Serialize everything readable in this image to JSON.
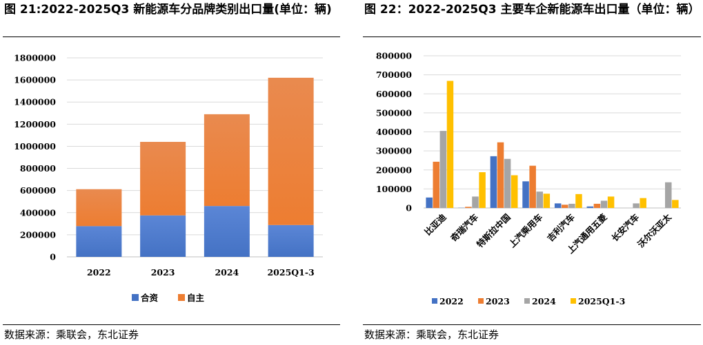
{
  "chart_data": [
    {
      "type": "bar",
      "stacked": true,
      "title": "图 21:2022-2025Q3 新能源车分品牌类别出口量(单位：辆)",
      "categories": [
        "2022",
        "2023",
        "2024",
        "2025Q1-3"
      ],
      "series": [
        {
          "name": "合资",
          "color": "#4472C4",
          "values": [
            278000,
            375000,
            460000,
            288000
          ]
        },
        {
          "name": "自主",
          "color": "#ED7D31",
          "values": [
            334000,
            665000,
            830000,
            1332000
          ]
        }
      ],
      "ylim": [
        0,
        1800000
      ],
      "yticks": [
        0,
        200000,
        400000,
        600000,
        800000,
        1000000,
        1200000,
        1400000,
        1600000,
        1800000
      ],
      "grid": true,
      "legend": "bottom",
      "source": "数据来源：乘联会，东北证券"
    },
    {
      "type": "bar",
      "title": "图 22：2022-2025Q3 主要车企新能源车出口量（单位：辆）",
      "categories": [
        "比亚迪",
        "奇瑞汽车",
        "特斯拉中国",
        "上汽乘用车",
        "吉利汽车",
        "上汽通用五菱",
        "长安汽车",
        "沃尔沃亚太"
      ],
      "series": [
        {
          "name": "2022",
          "color": "#4472C4",
          "values": [
            55000,
            1000,
            272000,
            140000,
            24000,
            8000,
            0,
            0
          ]
        },
        {
          "name": "2023",
          "color": "#ED7D31",
          "values": [
            243000,
            6000,
            345000,
            222000,
            17000,
            22000,
            0,
            0
          ]
        },
        {
          "name": "2024",
          "color": "#A5A5A5",
          "values": [
            405000,
            60000,
            258000,
            86000,
            22000,
            38000,
            24000,
            135000
          ]
        },
        {
          "name": "2025Q1-3",
          "color": "#FFC000",
          "values": [
            668000,
            188000,
            172000,
            75000,
            73000,
            60000,
            52000,
            42000
          ]
        }
      ],
      "ylim": [
        0,
        800000
      ],
      "yticks": [
        0,
        100000,
        200000,
        300000,
        400000,
        500000,
        600000,
        700000,
        800000
      ],
      "grid": true,
      "legend": "bottom",
      "source": "数据来源：乘联会，东北证券"
    }
  ]
}
